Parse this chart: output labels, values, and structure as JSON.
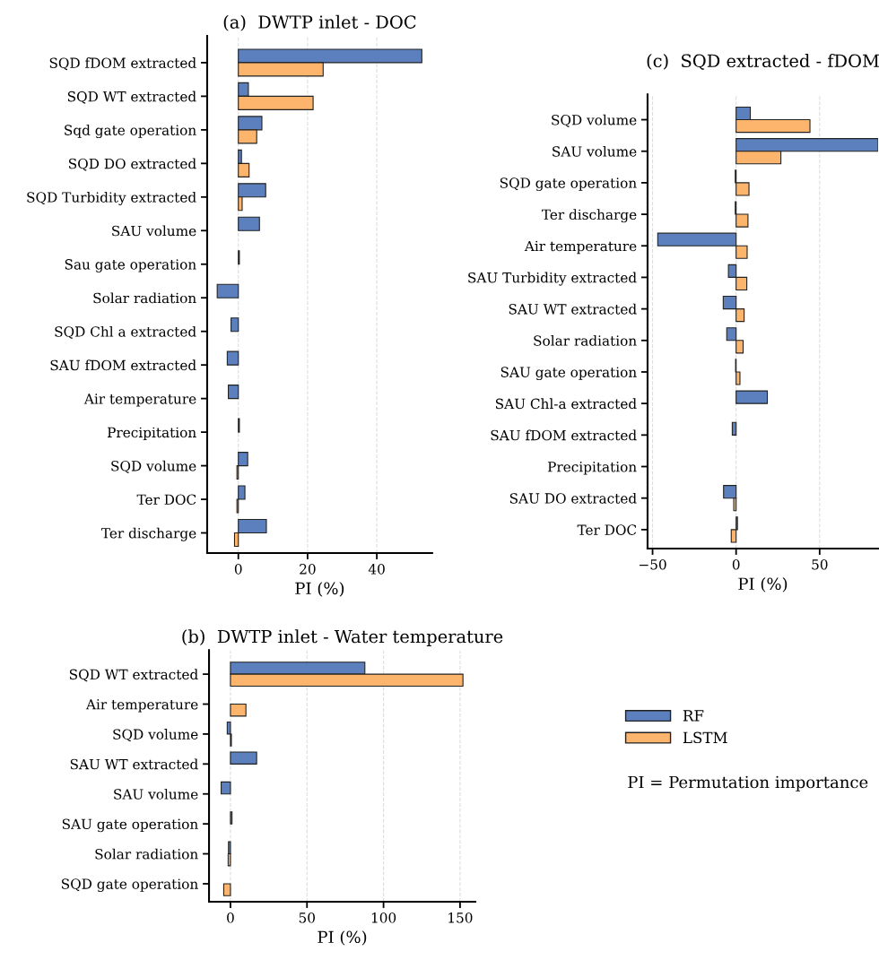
{
  "chart_data": [
    {
      "type": "bar",
      "orientation": "horizontal",
      "title": "(a)  DWTP inlet - DOC",
      "xlabel": "PI (%)",
      "categories": [
        "SQD fDOM extracted",
        "SQD WT extracted",
        "Sqd gate operation",
        "SQD DO extracted",
        "SQD Turbidity extracted",
        "SAU volume",
        "Sau gate operation",
        "Solar radiation",
        "SQD Chl a extracted",
        "SAU fDOM extracted",
        "Air temperature",
        "Precipitation",
        "SQD volume",
        "Ter DOC",
        "Ter discharge"
      ],
      "series": [
        {
          "name": "RF",
          "color": "#5b80bd",
          "values": [
            53.0,
            2.9,
            6.8,
            0.9,
            7.9,
            6.1,
            0.3,
            -6.1,
            -2.1,
            -3.2,
            -2.9,
            0.3,
            2.7,
            1.9,
            8.1
          ]
        },
        {
          "name": "LSTM",
          "color": "#fdb56e",
          "values": [
            24.5,
            21.6,
            5.3,
            3.1,
            1.1,
            null,
            null,
            null,
            null,
            null,
            null,
            null,
            -0.4,
            -0.4,
            -1.1
          ]
        }
      ],
      "xlim": [
        -9,
        56
      ],
      "xticks": [
        0,
        20,
        40
      ],
      "grid": "x",
      "legend": "bottom right"
    },
    {
      "type": "bar",
      "orientation": "horizontal",
      "title": "(c)  SQD extracted - fDOM",
      "xlabel": "PI (%)",
      "categories": [
        "SQD volume",
        "SAU volume",
        "SQD gate operation",
        "Ter discharge",
        "Air temperature",
        "SAU Turbidity extracted",
        "SAU WT extracted",
        "Solar radiation",
        "SAU gate operation",
        "SAU Chl-a extracted",
        "SAU fDOM extracted",
        "Precipitation",
        "SAU DO extracted",
        "Ter DOC"
      ],
      "series": [
        {
          "color": "#5b80bd",
          "values": [
            8.5,
            85,
            -0.5,
            -0.5,
            -46.9,
            -4.6,
            -7.7,
            -5.6,
            -0.3,
            18.7,
            -2.3,
            null,
            -7.5,
            0.8
          ]
        },
        {
          "color": "#fdb56e",
          "values": [
            44.2,
            26.8,
            7.7,
            7.1,
            6.6,
            6.4,
            4.8,
            4.2,
            2.3,
            null,
            null,
            null,
            -1.4,
            -2.9
          ]
        }
      ],
      "xlim": [
        -53,
        85
      ],
      "xticks": [
        -50,
        0,
        50
      ],
      "grid": "x",
      "legend": false
    },
    {
      "type": "bar",
      "orientation": "horizontal",
      "title": "(b)  DWTP inlet - Water temperature",
      "xlabel": "PI (%)",
      "categories": [
        "SQD WT extracted",
        "Air temperature",
        "SQD volume",
        "SAU WT extracted",
        "SAU volume",
        "SAU gate operation",
        "Solar radiation",
        "SQD gate operation"
      ],
      "series": [
        {
          "color": "#5b80bd",
          "values": [
            87.8,
            null,
            -2.1,
            17.1,
            -6.1,
            1.0,
            -1.3,
            null
          ]
        },
        {
          "color": "#fdb56e",
          "values": [
            151.9,
            10.1,
            0.6,
            null,
            null,
            null,
            -1.5,
            -4.4
          ]
        }
      ],
      "xlim": [
        -14,
        160
      ],
      "xticks": [
        0,
        50,
        100,
        150
      ],
      "grid": "x",
      "annotations": [
        "PI = Permutation importance"
      ]
    }
  ]
}
